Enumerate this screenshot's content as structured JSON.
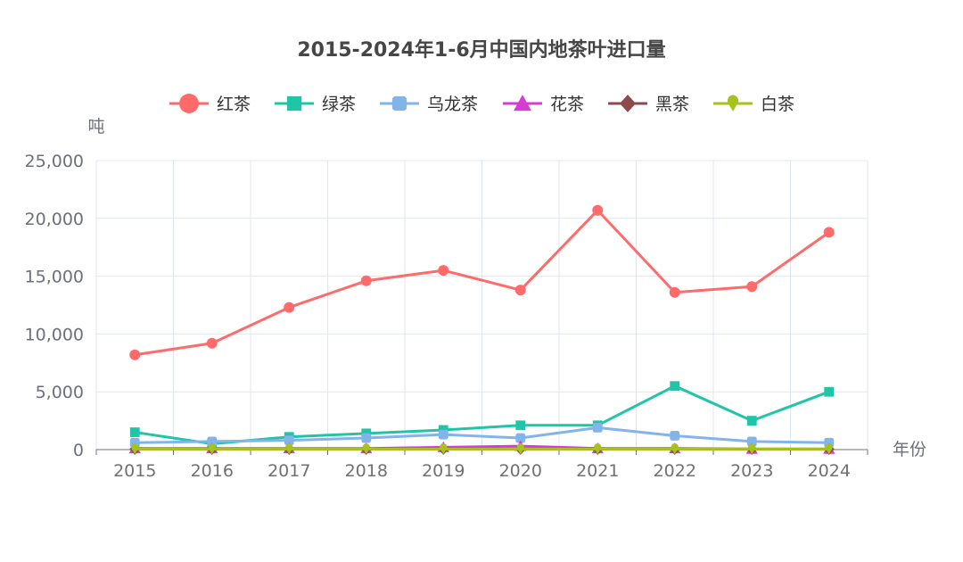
{
  "chart_data": {
    "type": "line",
    "title": "2015-2024年1-6月中国内地茶叶进口量",
    "ylabel": "吨",
    "xlabel": "年份",
    "categories": [
      "2015",
      "2016",
      "2017",
      "2018",
      "2019",
      "2020",
      "2021",
      "2022",
      "2023",
      "2024"
    ],
    "ylim": [
      0,
      25000
    ],
    "yticks": [
      0,
      5000,
      10000,
      15000,
      20000,
      25000
    ],
    "ytick_labels": [
      "0",
      "5,000",
      "10,000",
      "15,000",
      "20,000",
      "25,000"
    ],
    "grid": true,
    "legend_position": "top-center",
    "series": [
      {
        "name": "红茶",
        "color": "#ff6b6b",
        "marker": "circle",
        "values": [
          8200,
          9200,
          12300,
          14600,
          15500,
          13800,
          20700,
          13600,
          14100,
          18800
        ]
      },
      {
        "name": "绿茶",
        "color": "#20c5a8",
        "marker": "square",
        "values": [
          1500,
          500,
          1100,
          1400,
          1700,
          2100,
          2100,
          5500,
          2500,
          5000
        ]
      },
      {
        "name": "乌龙茶",
        "color": "#82b4eb",
        "marker": "roundrect",
        "values": [
          600,
          700,
          800,
          1000,
          1300,
          1000,
          1900,
          1200,
          700,
          600
        ]
      },
      {
        "name": "花茶",
        "color": "#d63bd6",
        "marker": "triangle",
        "values": [
          100,
          100,
          100,
          100,
          200,
          300,
          100,
          100,
          50,
          50
        ]
      },
      {
        "name": "黑茶",
        "color": "#8c4a4a",
        "marker": "diamond",
        "values": [
          50,
          50,
          50,
          50,
          50,
          50,
          50,
          50,
          50,
          50
        ]
      },
      {
        "name": "白茶",
        "color": "#a8c21c",
        "marker": "pin",
        "values": [
          50,
          50,
          50,
          50,
          50,
          50,
          50,
          50,
          50,
          50
        ]
      }
    ]
  }
}
